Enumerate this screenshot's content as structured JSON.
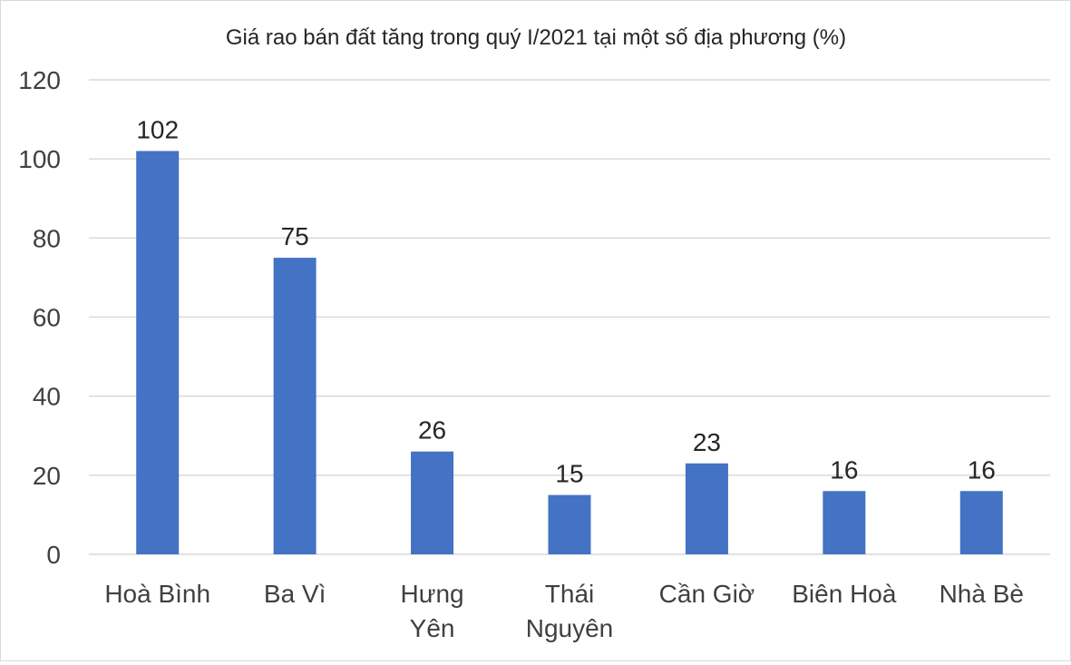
{
  "chart_data": {
    "type": "bar",
    "title": "Giá rao bán đất tăng trong quý I/2021 tại một số địa phương (%)",
    "categories": [
      [
        "Hoà Bình"
      ],
      [
        "Ba Vì"
      ],
      [
        "Hưng",
        "Yên"
      ],
      [
        "Thái",
        "Nguyên"
      ],
      [
        "Cần Giờ"
      ],
      [
        "Biên Hoà"
      ],
      [
        "Nhà Bè"
      ]
    ],
    "values": [
      102,
      75,
      26,
      15,
      23,
      16,
      16
    ],
    "data_labels": [
      "102",
      "75",
      "26",
      "15",
      "23",
      "16",
      "16"
    ],
    "ylim": [
      0,
      120
    ],
    "yticks": [
      0,
      20,
      40,
      60,
      80,
      100,
      120
    ],
    "xlabel": "",
    "ylabel": "",
    "grid": true,
    "legend": "none",
    "colors": {
      "bar": "#4472c4",
      "grid": "#d9d9d9",
      "text": "#404040",
      "label": "#262626"
    }
  }
}
